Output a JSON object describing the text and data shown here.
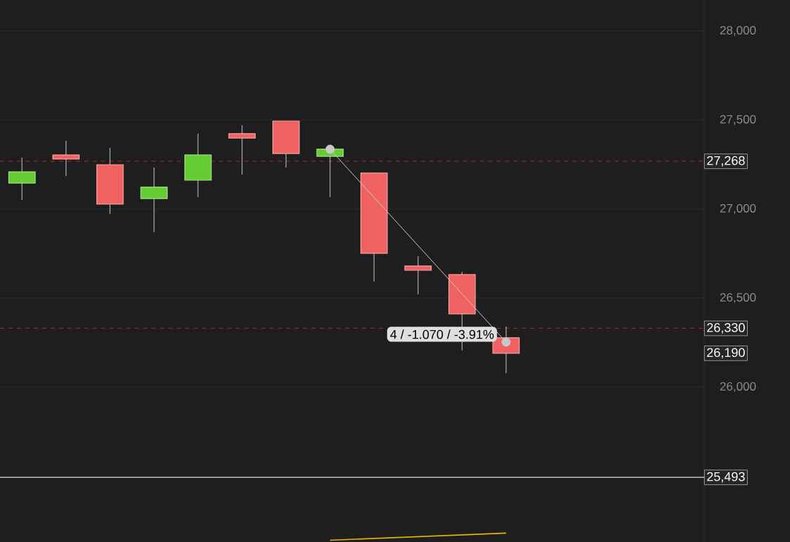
{
  "chart_data": {
    "type": "candlestick",
    "categories": [
      null,
      null,
      null,
      null,
      null,
      null,
      null,
      null,
      null,
      null,
      null,
      null,
      null,
      null,
      null,
      null
    ],
    "ohlc": [
      [
        27146,
        27289,
        27051,
        27209
      ],
      [
        27304,
        27383,
        27186,
        27281
      ],
      [
        27249,
        27344,
        26972,
        27028
      ],
      [
        27059,
        27233,
        26870,
        27123
      ],
      [
        27162,
        27423,
        27067,
        27304
      ],
      [
        27423,
        27470,
        27194,
        27399
      ],
      [
        27494,
        27494,
        27233,
        27312
      ],
      [
        27296,
        27336,
        27067,
        27336
      ],
      [
        27202,
        27202,
        26593,
        26751
      ],
      [
        26680,
        26735,
        26522,
        26656
      ],
      [
        26632,
        26648,
        26206,
        26411
      ],
      [
        26277,
        26340,
        26079,
        26190
      ],
      null,
      null,
      null,
      null
    ],
    "colors": [
      "#66cc33",
      "#f06262",
      "#f06262",
      "#66cc33",
      "#66cc33",
      "#f06262",
      "#f06262",
      "#66cc33",
      "#f06262",
      "#f06262",
      "#f06262",
      "#f06262",
      null,
      null,
      null,
      null
    ],
    "series": [
      {
        "type": "line",
        "color": "#c8c8c8",
        "marker": "circle",
        "values": [
          null,
          null,
          null,
          null,
          null,
          null,
          null,
          27336,
          null,
          null,
          null,
          26253,
          null,
          null,
          null,
          null
        ]
      },
      {
        "type": "line",
        "color": "#e6b800",
        "marker": "none",
        "values": [
          null,
          null,
          null,
          null,
          null,
          null,
          null,
          25140,
          null,
          null,
          null,
          25180,
          null,
          null,
          null,
          null
        ]
      }
    ],
    "ylim": [
      25130,
      28174
    ],
    "yticks": [
      {
        "value": 26000,
        "label": "26,000"
      },
      {
        "value": 26500,
        "label": "26,500"
      },
      {
        "value": 27000,
        "label": "27,000"
      },
      {
        "value": 27500,
        "label": "27,500"
      },
      {
        "value": 28000,
        "label": "28,000"
      }
    ],
    "grid": "y",
    "ref_lines": [
      {
        "axis": "y",
        "value": 27268,
        "label": "27,268",
        "color": "#8a2b2b",
        "line_style": "dashed"
      },
      {
        "axis": "y",
        "value": 26330,
        "label": "26,330",
        "color": "#8a2b2b",
        "line_style": "dashed"
      },
      {
        "axis": "y",
        "value": 25493,
        "label": "25,493",
        "color": "#e0e0e0",
        "line_style": "solid"
      }
    ],
    "annotations": [
      "4 / -1.070 / -3.91%",
      {
        "text": "26,190",
        "y": 26190
      }
    ]
  }
}
